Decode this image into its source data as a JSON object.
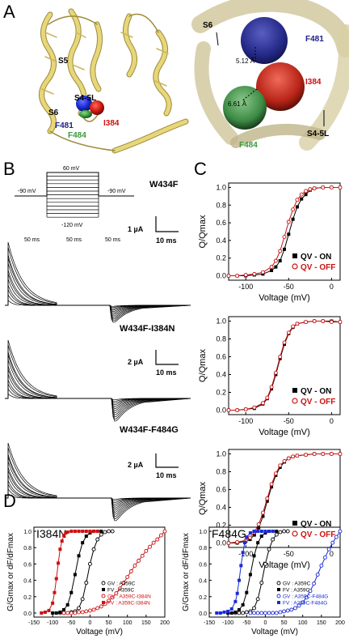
{
  "colors": {
    "black": "#000000",
    "red": "#cc1111",
    "blue": "#1a2bd6",
    "green": "#3a9a3a",
    "navy": "#1f1f8a",
    "helix": "#e8d77a",
    "helix_edge": "#9c8b3a"
  },
  "panel_labels": {
    "a": "A",
    "b": "B",
    "c": "C",
    "d": "D"
  },
  "panelA": {
    "left": {
      "s5": "S5",
      "s45l": "S4-5L",
      "s6": "S6",
      "f481": "F481",
      "i384": "I384",
      "f484": "F484"
    },
    "right": {
      "s6": "S6",
      "f481": "F481",
      "i384": "I384",
      "d1": "5.12 Å",
      "d2": "6.61 Å",
      "s45l": "S4-5L",
      "f484": "F484"
    }
  },
  "panelB": {
    "protocol": {
      "v_hold_left": "-90 mV",
      "v_top": "60 mV",
      "v_bottom": "-120 mV",
      "v_hold_right": "-90 mV",
      "t1": "50 ms",
      "t2": "50 ms",
      "t3": "50 ms"
    },
    "traces": [
      {
        "name": "W434F",
        "scale_current": "1 µA",
        "scale_time": "10 ms"
      },
      {
        "name": "W434F-I384N",
        "scale_current": "2 µA",
        "scale_time": "10 ms"
      },
      {
        "name": "W434F-F484G",
        "scale_current": "2 µA",
        "scale_time": "10 ms"
      }
    ]
  },
  "chart_data": [
    {
      "type": "scatter",
      "ylabel": "Q/Qmax",
      "xlabel": "Voltage (mV)",
      "xlim": [
        -120,
        10
      ],
      "ylim": [
        -0.05,
        1.05
      ],
      "xticks": [
        -100,
        -50,
        0
      ],
      "yticks": [
        "0.0",
        "0.2",
        "0.4",
        "0.6",
        "0.8",
        "1.0"
      ],
      "legend_position": "bottom-right",
      "series": [
        {
          "name": "QV - ON",
          "color": "#000000",
          "marker": "filled-square",
          "x": [
            -120,
            -110,
            -100,
            -90,
            -80,
            -70,
            -65,
            -60,
            -55,
            -50,
            -45,
            -40,
            -35,
            -30,
            -25,
            -20,
            -10,
            0,
            10
          ],
          "y": [
            0.0,
            0.0,
            0.0,
            0.01,
            0.02,
            0.06,
            0.1,
            0.17,
            0.3,
            0.47,
            0.64,
            0.78,
            0.87,
            0.92,
            0.97,
            0.99,
            1.0,
            1.0,
            1.0
          ]
        },
        {
          "name": "QV - OFF",
          "color": "#cc1111",
          "marker": "open-circle",
          "x": [
            -120,
            -110,
            -100,
            -90,
            -80,
            -70,
            -65,
            -60,
            -55,
            -50,
            -45,
            -40,
            -35,
            -30,
            -25,
            -20,
            -10,
            0,
            10
          ],
          "y": [
            0.0,
            0.0,
            0.01,
            0.02,
            0.04,
            0.1,
            0.17,
            0.28,
            0.44,
            0.61,
            0.75,
            0.86,
            0.92,
            0.96,
            0.98,
            0.99,
            1.0,
            1.0,
            1.0
          ]
        }
      ]
    },
    {
      "type": "scatter",
      "ylabel": "Q/Qmax",
      "xlabel": "Voltage (mV)",
      "xlim": [
        -120,
        10
      ],
      "ylim": [
        -0.05,
        1.05
      ],
      "xticks": [
        -100,
        -50,
        0
      ],
      "yticks": [
        "0.0",
        "0.2",
        "0.4",
        "0.6",
        "0.8",
        "1.0"
      ],
      "legend_position": "bottom-right",
      "series": [
        {
          "name": "QV - ON",
          "color": "#000000",
          "marker": "filled-square",
          "x": [
            -120,
            -110,
            -100,
            -90,
            -80,
            -75,
            -70,
            -65,
            -60,
            -55,
            -50,
            -45,
            -40,
            -30,
            -20,
            -10,
            0,
            10
          ],
          "y": [
            0.0,
            0.0,
            0.01,
            0.02,
            0.07,
            0.13,
            0.24,
            0.4,
            0.58,
            0.74,
            0.86,
            0.93,
            0.97,
            0.99,
            1.0,
            1.0,
            1.0,
            0.99
          ]
        },
        {
          "name": "QV - OFF",
          "color": "#cc1111",
          "marker": "open-circle",
          "x": [
            -120,
            -110,
            -100,
            -90,
            -80,
            -75,
            -70,
            -65,
            -60,
            -55,
            -50,
            -45,
            -40,
            -30,
            -20,
            -10,
            0,
            10
          ],
          "y": [
            0.0,
            0.0,
            0.01,
            0.03,
            0.08,
            0.14,
            0.26,
            0.42,
            0.6,
            0.76,
            0.87,
            0.94,
            0.97,
            0.99,
            1.0,
            1.0,
            0.99,
            0.99
          ]
        }
      ]
    },
    {
      "type": "scatter",
      "ylabel": "Q/Qmax",
      "xlabel": "Voltage (mV)",
      "xlim": [
        -120,
        10
      ],
      "ylim": [
        -0.05,
        1.05
      ],
      "xticks": [
        -100,
        -50,
        0
      ],
      "yticks": [
        "0.0",
        "0.2",
        "0.4",
        "0.6",
        "0.8",
        "1.0"
      ],
      "legend_position": "bottom-right",
      "series": [
        {
          "name": "QV - ON",
          "color": "#000000",
          "marker": "filled-square",
          "x": [
            -120,
            -110,
            -100,
            -95,
            -90,
            -85,
            -80,
            -75,
            -70,
            -65,
            -60,
            -55,
            -50,
            -45,
            -40,
            -30,
            -20,
            -10,
            0,
            10
          ],
          "y": [
            0.0,
            0.0,
            0.02,
            0.04,
            0.09,
            0.17,
            0.3,
            0.47,
            0.63,
            0.76,
            0.85,
            0.91,
            0.95,
            0.97,
            0.98,
            0.99,
            1.0,
            1.0,
            1.0,
            1.0
          ]
        },
        {
          "name": "QV - OFF",
          "color": "#cc1111",
          "marker": "open-circle",
          "x": [
            -120,
            -110,
            -100,
            -95,
            -90,
            -85,
            -80,
            -75,
            -70,
            -65,
            -60,
            -55,
            -50,
            -45,
            -40,
            -30,
            -20,
            -10,
            0,
            10
          ],
          "y": [
            0.0,
            0.01,
            0.03,
            0.06,
            0.12,
            0.21,
            0.34,
            0.5,
            0.66,
            0.78,
            0.87,
            0.92,
            0.95,
            0.97,
            0.98,
            0.99,
            1.0,
            1.0,
            1.0,
            1.0
          ]
        }
      ]
    },
    {
      "type": "scatter",
      "title": "I384N",
      "ylabel": "G/Gmax or dF/dFmax",
      "xlabel": "Voltage (mV)",
      "xlim": [
        -150,
        200
      ],
      "ylim": [
        -0.05,
        1.05
      ],
      "xticks": [
        -150,
        -100,
        -50,
        0,
        50,
        100,
        150,
        200
      ],
      "yticks": [
        "0.0",
        "0.2",
        "0.4",
        "0.6",
        "0.8",
        "1.0"
      ],
      "legend_position": "bottom-right",
      "series": [
        {
          "name": "GV : A359C",
          "color": "#000000",
          "marker": "open-circle",
          "x": [
            -80,
            -70,
            -60,
            -50,
            -40,
            -30,
            -20,
            -10,
            0,
            10,
            20,
            30,
            40,
            50,
            60
          ],
          "y": [
            0.0,
            0.0,
            0.0,
            0.01,
            0.02,
            0.06,
            0.17,
            0.37,
            0.6,
            0.78,
            0.9,
            0.96,
            0.99,
            1.0,
            1.0
          ]
        },
        {
          "name": "FV : A359C",
          "color": "#000000",
          "marker": "filled-square",
          "x": [
            -100,
            -90,
            -80,
            -70,
            -60,
            -50,
            -40,
            -30,
            -20,
            -10,
            0,
            10,
            20,
            30
          ],
          "y": [
            0.0,
            0.0,
            0.01,
            0.04,
            0.1,
            0.25,
            0.47,
            0.7,
            0.86,
            0.94,
            0.98,
            1.0,
            1.0,
            1.0
          ]
        },
        {
          "name": "GV : A359C-I384N",
          "color": "#cc1111",
          "marker": "open-circle",
          "x": [
            -70,
            -60,
            -50,
            -40,
            -30,
            -20,
            -10,
            0,
            10,
            20,
            30,
            40,
            50,
            60,
            70,
            80,
            90,
            100,
            110,
            120,
            130,
            140,
            150,
            160,
            170,
            180,
            190,
            200
          ],
          "y": [
            0.0,
            0.0,
            0.0,
            0.0,
            0.01,
            0.01,
            0.02,
            0.03,
            0.04,
            0.06,
            0.08,
            0.11,
            0.15,
            0.19,
            0.24,
            0.3,
            0.37,
            0.44,
            0.51,
            0.58,
            0.64,
            0.7,
            0.76,
            0.81,
            0.86,
            0.9,
            0.95,
            1.0
          ]
        },
        {
          "name": "FV : A359C-I384N",
          "color": "#cc1111",
          "marker": "filled-square",
          "x": [
            -130,
            -120,
            -110,
            -100,
            -95,
            -90,
            -85,
            -80,
            -75,
            -70,
            -65,
            -60,
            -50,
            -40,
            -30,
            -20,
            -10,
            0,
            10,
            20
          ],
          "y": [
            0.0,
            0.01,
            0.03,
            0.12,
            0.25,
            0.42,
            0.61,
            0.78,
            0.88,
            0.95,
            0.98,
            0.99,
            1.0,
            1.0,
            1.0,
            1.0,
            1.0,
            1.0,
            1.0,
            1.0
          ]
        }
      ]
    },
    {
      "type": "scatter",
      "title": "F484G",
      "ylabel": "G/Gmax or dF/dFmax",
      "xlabel": "Voltage (mV)",
      "xlim": [
        -150,
        200
      ],
      "ylim": [
        -0.05,
        1.05
      ],
      "xticks": [
        -150,
        -100,
        -50,
        0,
        50,
        100,
        150,
        200
      ],
      "yticks": [
        "0.0",
        "0.2",
        "0.4",
        "0.6",
        "0.8",
        "1.0"
      ],
      "legend_position": "bottom-right",
      "series": [
        {
          "name": "GV : A359C",
          "color": "#000000",
          "marker": "open-circle",
          "x": [
            -80,
            -70,
            -60,
            -50,
            -40,
            -30,
            -20,
            -10,
            0,
            10,
            20,
            30,
            40,
            50,
            60
          ],
          "y": [
            0.0,
            0.0,
            0.0,
            0.01,
            0.02,
            0.06,
            0.17,
            0.37,
            0.6,
            0.78,
            0.9,
            0.96,
            0.99,
            1.0,
            1.0
          ]
        },
        {
          "name": "FV : A359C",
          "color": "#000000",
          "marker": "filled-square",
          "x": [
            -100,
            -90,
            -80,
            -70,
            -60,
            -50,
            -40,
            -30,
            -20,
            -10,
            0,
            10,
            20,
            30
          ],
          "y": [
            0.0,
            0.0,
            0.01,
            0.04,
            0.1,
            0.25,
            0.47,
            0.7,
            0.86,
            0.94,
            0.98,
            1.0,
            1.0,
            1.0
          ]
        },
        {
          "name": "GV : A359C-F484G",
          "color": "#1a2bd6",
          "marker": "open-circle",
          "x": [
            -40,
            -30,
            -20,
            -10,
            0,
            10,
            20,
            30,
            40,
            50,
            60,
            70,
            80,
            90,
            100,
            110,
            120,
            130,
            140,
            150,
            160,
            170,
            180,
            190,
            200
          ],
          "y": [
            0.0,
            0.0,
            0.0,
            0.0,
            0.0,
            0.0,
            0.0,
            0.0,
            0.01,
            0.02,
            0.03,
            0.04,
            0.06,
            0.09,
            0.13,
            0.19,
            0.27,
            0.36,
            0.47,
            0.58,
            0.68,
            0.78,
            0.86,
            0.93,
            1.0
          ]
        },
        {
          "name": "FV : A359C-F484G",
          "color": "#1a2bd6",
          "marker": "filled-square",
          "x": [
            -130,
            -120,
            -110,
            -100,
            -90,
            -80,
            -75,
            -70,
            -65,
            -60,
            -55,
            -50,
            -40,
            -30,
            -20,
            -10,
            0,
            10,
            20
          ],
          "y": [
            0.0,
            0.0,
            0.01,
            0.02,
            0.05,
            0.14,
            0.24,
            0.4,
            0.58,
            0.74,
            0.86,
            0.93,
            0.98,
            1.0,
            1.0,
            1.0,
            1.0,
            1.0,
            1.0
          ]
        }
      ]
    }
  ]
}
